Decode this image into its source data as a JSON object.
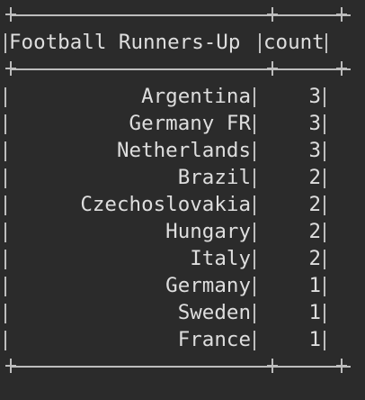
{
  "table": {
    "headers": {
      "name": "Football Runners-Up",
      "count": "count"
    },
    "rows": [
      {
        "name": "Argentina",
        "count": "3"
      },
      {
        "name": "Germany FR",
        "count": "3"
      },
      {
        "name": "Netherlands",
        "count": "3"
      },
      {
        "name": "Brazil",
        "count": "2"
      },
      {
        "name": "Czechoslovakia",
        "count": "2"
      },
      {
        "name": "Hungary",
        "count": "2"
      },
      {
        "name": "Italy",
        "count": "2"
      },
      {
        "name": "Germany",
        "count": "1"
      },
      {
        "name": "Sweden",
        "count": "1"
      },
      {
        "name": "France",
        "count": "1"
      }
    ]
  },
  "colors": {
    "background": "#2b2b2b",
    "text": "#dedede",
    "border": "#bdbdbd"
  }
}
